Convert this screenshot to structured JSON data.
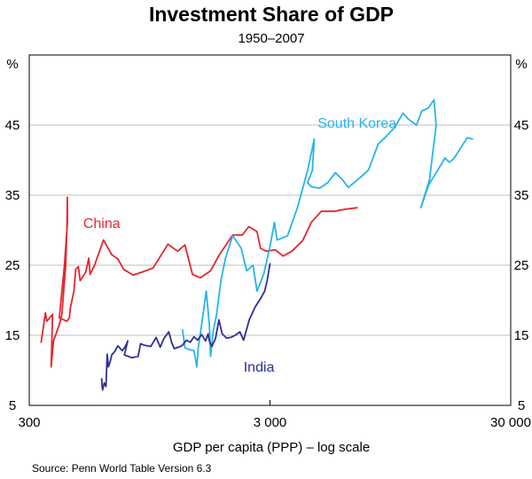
{
  "chart_data": {
    "type": "line",
    "title": "Investment Share of GDP",
    "subtitle": "1950–2007",
    "xlabel": "GDP per capita (PPP) – log scale",
    "ylabel": "%",
    "xscale": "log",
    "xlim": [
      300,
      30000
    ],
    "ylim": [
      5,
      55
    ],
    "x_ticks": [
      300,
      3000,
      30000
    ],
    "x_tick_labels": [
      "300",
      "3 000",
      "30 000"
    ],
    "y_ticks": [
      5,
      15,
      25,
      35,
      45
    ],
    "y_tick_labels": [
      "5",
      "15",
      "25",
      "35",
      "45"
    ],
    "y_unit_left": "%",
    "y_unit_right": "%",
    "source": "Source: Penn World Table Version 6.3",
    "grid": true,
    "series": [
      {
        "name": "China",
        "label": "China",
        "color": "#e3262f",
        "points": [
          [
            336,
            14
          ],
          [
            350,
            18.2
          ],
          [
            355,
            17
          ],
          [
            375,
            18
          ],
          [
            370,
            10.5
          ],
          [
            378,
            14.2
          ],
          [
            400,
            16.5
          ],
          [
            410,
            18
          ],
          [
            425,
            25
          ],
          [
            430,
            30
          ],
          [
            432,
            34.7
          ],
          [
            432,
            31
          ],
          [
            420,
            25
          ],
          [
            400,
            17.5
          ],
          [
            430,
            17
          ],
          [
            440,
            17.5
          ],
          [
            445,
            19
          ],
          [
            460,
            21.3
          ],
          [
            468,
            24.4
          ],
          [
            480,
            24.8
          ],
          [
            488,
            22.8
          ],
          [
            515,
            24
          ],
          [
            530,
            26
          ],
          [
            537,
            23.7
          ],
          [
            560,
            25
          ],
          [
            610,
            28.6
          ],
          [
            660,
            26.5
          ],
          [
            700,
            25.9
          ],
          [
            740,
            24.4
          ],
          [
            810,
            23.6
          ],
          [
            880,
            24
          ],
          [
            980,
            24.6
          ],
          [
            1130,
            28
          ],
          [
            1240,
            27
          ],
          [
            1330,
            27.9
          ],
          [
            1430,
            23.7
          ],
          [
            1540,
            23.2
          ],
          [
            1700,
            24.2
          ],
          [
            1850,
            26.5
          ],
          [
            2100,
            29.3
          ],
          [
            2300,
            29.3
          ],
          [
            2450,
            30.5
          ],
          [
            2650,
            29.8
          ],
          [
            2740,
            27.4
          ],
          [
            2900,
            27
          ],
          [
            3150,
            27.2
          ],
          [
            3400,
            26.3
          ],
          [
            3700,
            27
          ],
          [
            4100,
            28.5
          ],
          [
            4450,
            31.1
          ],
          [
            4900,
            32.7
          ],
          [
            5550,
            32.7
          ],
          [
            6200,
            33
          ],
          [
            6900,
            33.2
          ]
        ]
      },
      {
        "name": "South Korea",
        "label": "South Korea",
        "color": "#27b4e8",
        "points": [
          [
            1300,
            15.8
          ],
          [
            1330,
            13.2
          ],
          [
            1380,
            13
          ],
          [
            1450,
            12.8
          ],
          [
            1490,
            10.5
          ],
          [
            1510,
            13.2
          ],
          [
            1560,
            16.5
          ],
          [
            1630,
            21.3
          ],
          [
            1680,
            16.5
          ],
          [
            1700,
            12
          ],
          [
            1745,
            15.7
          ],
          [
            1800,
            18
          ],
          [
            1880,
            23
          ],
          [
            1960,
            26
          ],
          [
            2100,
            29.2
          ],
          [
            2280,
            27.4
          ],
          [
            2400,
            24.2
          ],
          [
            2550,
            25
          ],
          [
            2650,
            21.3
          ],
          [
            2830,
            23.8
          ],
          [
            3000,
            27.7
          ],
          [
            3130,
            31.1
          ],
          [
            3210,
            28.6
          ],
          [
            3550,
            29.2
          ],
          [
            3900,
            33.2
          ],
          [
            4300,
            38.5
          ],
          [
            4580,
            43
          ],
          [
            4500,
            38.5
          ],
          [
            4300,
            36.8
          ],
          [
            4450,
            36.2
          ],
          [
            4830,
            36
          ],
          [
            5220,
            36.8
          ],
          [
            5600,
            38.2
          ],
          [
            6000,
            37.2
          ],
          [
            6350,
            36.1
          ],
          [
            7100,
            37.5
          ],
          [
            7700,
            38.6
          ],
          [
            8450,
            42.3
          ],
          [
            9200,
            43.5
          ],
          [
            9900,
            44.7
          ],
          [
            10700,
            46.7
          ],
          [
            11300,
            45.8
          ],
          [
            12200,
            45
          ],
          [
            12800,
            47
          ],
          [
            13600,
            47.4
          ],
          [
            14400,
            48.6
          ],
          [
            14700,
            45
          ],
          [
            13800,
            37.2
          ],
          [
            12700,
            33.2
          ],
          [
            13700,
            36.5
          ],
          [
            15000,
            38.7
          ],
          [
            16000,
            40.3
          ],
          [
            16700,
            39.7
          ],
          [
            17400,
            40.2
          ],
          [
            18800,
            42
          ],
          [
            19800,
            43.2
          ],
          [
            20800,
            43
          ]
        ]
      },
      {
        "name": "India",
        "label": "India",
        "color": "#2e3192",
        "points": [
          [
            600,
            8.8
          ],
          [
            602,
            7.8
          ],
          [
            605,
            7.2
          ],
          [
            615,
            8.2
          ],
          [
            625,
            7.7
          ],
          [
            632,
            12.3
          ],
          [
            640,
            10.5
          ],
          [
            650,
            11.2
          ],
          [
            660,
            12.2
          ],
          [
            680,
            12.7
          ],
          [
            700,
            13.5
          ],
          [
            730,
            12.8
          ],
          [
            755,
            13.5
          ],
          [
            770,
            14.2
          ],
          [
            745,
            12.2
          ],
          [
            800,
            11.8
          ],
          [
            850,
            12
          ],
          [
            870,
            13.8
          ],
          [
            900,
            13.6
          ],
          [
            960,
            13.4
          ],
          [
            1010,
            14.7
          ],
          [
            1050,
            13.3
          ],
          [
            1090,
            14.6
          ],
          [
            1140,
            15.5
          ],
          [
            1170,
            14
          ],
          [
            1200,
            13.1
          ],
          [
            1250,
            13.3
          ],
          [
            1290,
            13.5
          ],
          [
            1350,
            14.3
          ],
          [
            1400,
            14
          ],
          [
            1450,
            14.8
          ],
          [
            1500,
            14.3
          ],
          [
            1560,
            15.1
          ],
          [
            1620,
            14.2
          ],
          [
            1660,
            15.2
          ],
          [
            1680,
            14.2
          ],
          [
            1720,
            13.4
          ],
          [
            1780,
            14.5
          ],
          [
            1840,
            17.2
          ],
          [
            1900,
            15.2
          ],
          [
            1980,
            14.6
          ],
          [
            2060,
            14.7
          ],
          [
            2150,
            15
          ],
          [
            2250,
            15.5
          ],
          [
            2330,
            14.3
          ],
          [
            2460,
            17.2
          ],
          [
            2600,
            19
          ],
          [
            2750,
            20.3
          ],
          [
            2850,
            21.3
          ],
          [
            2920,
            22.8
          ],
          [
            3000,
            25.2
          ]
        ]
      }
    ],
    "annotations": [
      {
        "text": "China",
        "series": "China",
        "at": [
          600,
          30.3
        ]
      },
      {
        "text": "South Korea",
        "series": "South Korea",
        "at": [
          6900,
          44.6
        ]
      },
      {
        "text": "India",
        "series": "India",
        "at": [
          2700,
          9.8
        ]
      }
    ]
  }
}
